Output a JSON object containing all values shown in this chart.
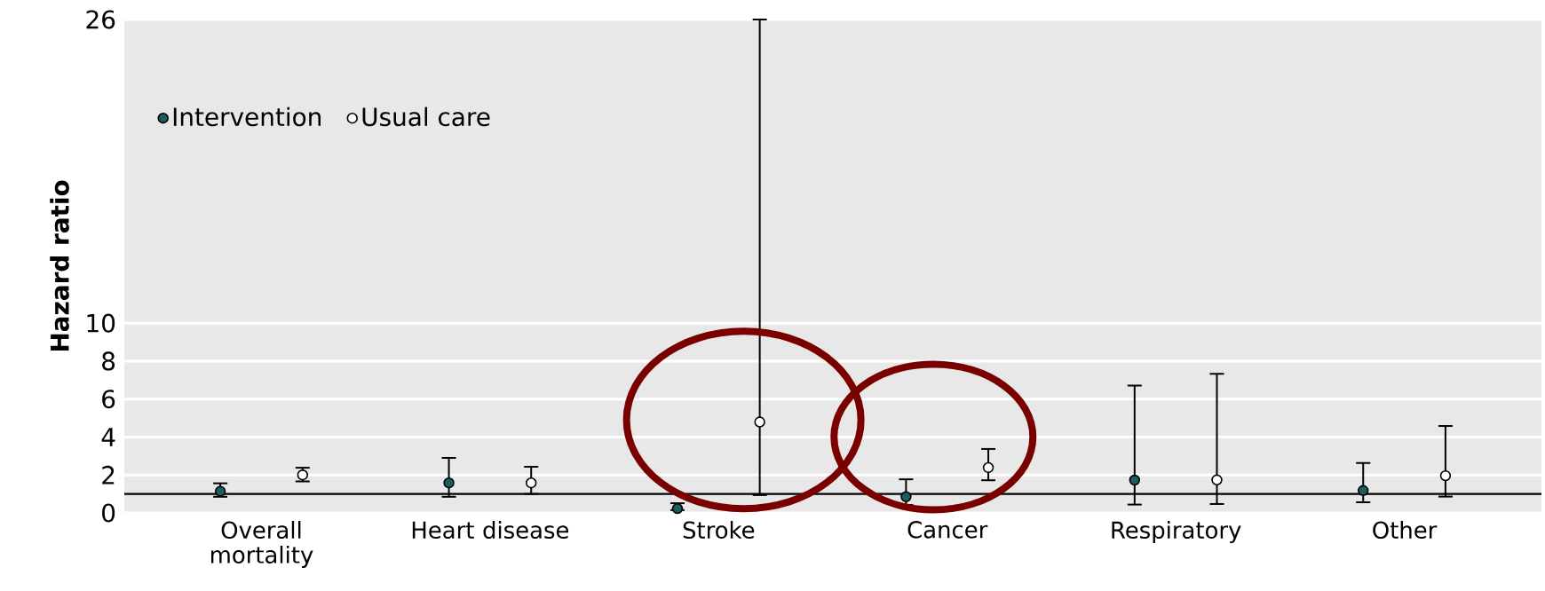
{
  "chart_data": {
    "type": "scatter",
    "ylabel": "Hazard ratio",
    "categories": [
      "Overall mortality",
      "Heart disease",
      "Stroke",
      "Cancer",
      "Respiratory",
      "Other"
    ],
    "series": [
      {
        "name": "Intervention",
        "color": "#1b5e5e",
        "values": [
          1.14,
          1.58,
          0.23,
          0.85,
          1.73,
          1.18
        ],
        "errors": [
          [
            0.85,
            1.56
          ],
          [
            0.85,
            2.9
          ],
          [
            0.15,
            0.51
          ],
          [
            0.42,
            1.77
          ],
          [
            0.44,
            6.71
          ],
          [
            0.56,
            2.63
          ]
        ]
      },
      {
        "name": "Usual care",
        "color": "#ffffff",
        "values": [
          2.0,
          1.58,
          4.79,
          2.39,
          1.74,
          1.96
        ],
        "errors": [
          [
            1.66,
            2.38
          ],
          [
            1.0,
            2.43
          ],
          [
            0.94,
            26
          ],
          [
            1.72,
            3.37
          ],
          [
            0.47,
            7.33
          ],
          [
            0.86,
            4.58
          ]
        ]
      }
    ],
    "ylim": [
      0,
      26
    ],
    "yticks": [
      0,
      2,
      4,
      6,
      8,
      10,
      26
    ],
    "grid": "y",
    "legend": "top left",
    "marker": "circle",
    "ref_lines": [
      {
        "axis": "y",
        "value": 1,
        "color": "#000000"
      }
    ]
  }
}
